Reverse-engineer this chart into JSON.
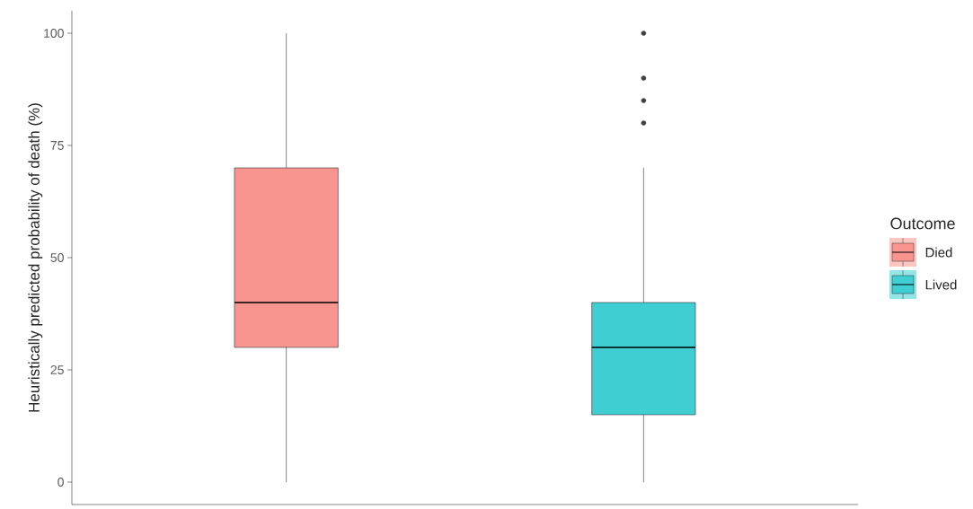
{
  "chart_data": {
    "type": "box",
    "categories": [
      null,
      null
    ],
    "ylabel": "Heuristically predicted probability of death (%)",
    "legend_title": "Outcome",
    "legend": "right",
    "grid": false,
    "ylim": [
      -5,
      105
    ],
    "yticks": [
      0,
      25,
      50,
      75,
      100
    ],
    "series": [
      {
        "name": "Died",
        "color": "#f8958e",
        "boxes": [
          {
            "low": 0,
            "q1": 30,
            "median": 40,
            "q3": 70,
            "high": 100
          },
          null
        ]
      },
      {
        "name": "Lived",
        "color": "#3fced2",
        "boxes": [
          null,
          {
            "low": 0,
            "q1": 15,
            "median": 30,
            "q3": 40,
            "high": 70,
            "outliers": [
              80,
              85,
              90,
              100
            ]
          }
        ]
      }
    ]
  }
}
